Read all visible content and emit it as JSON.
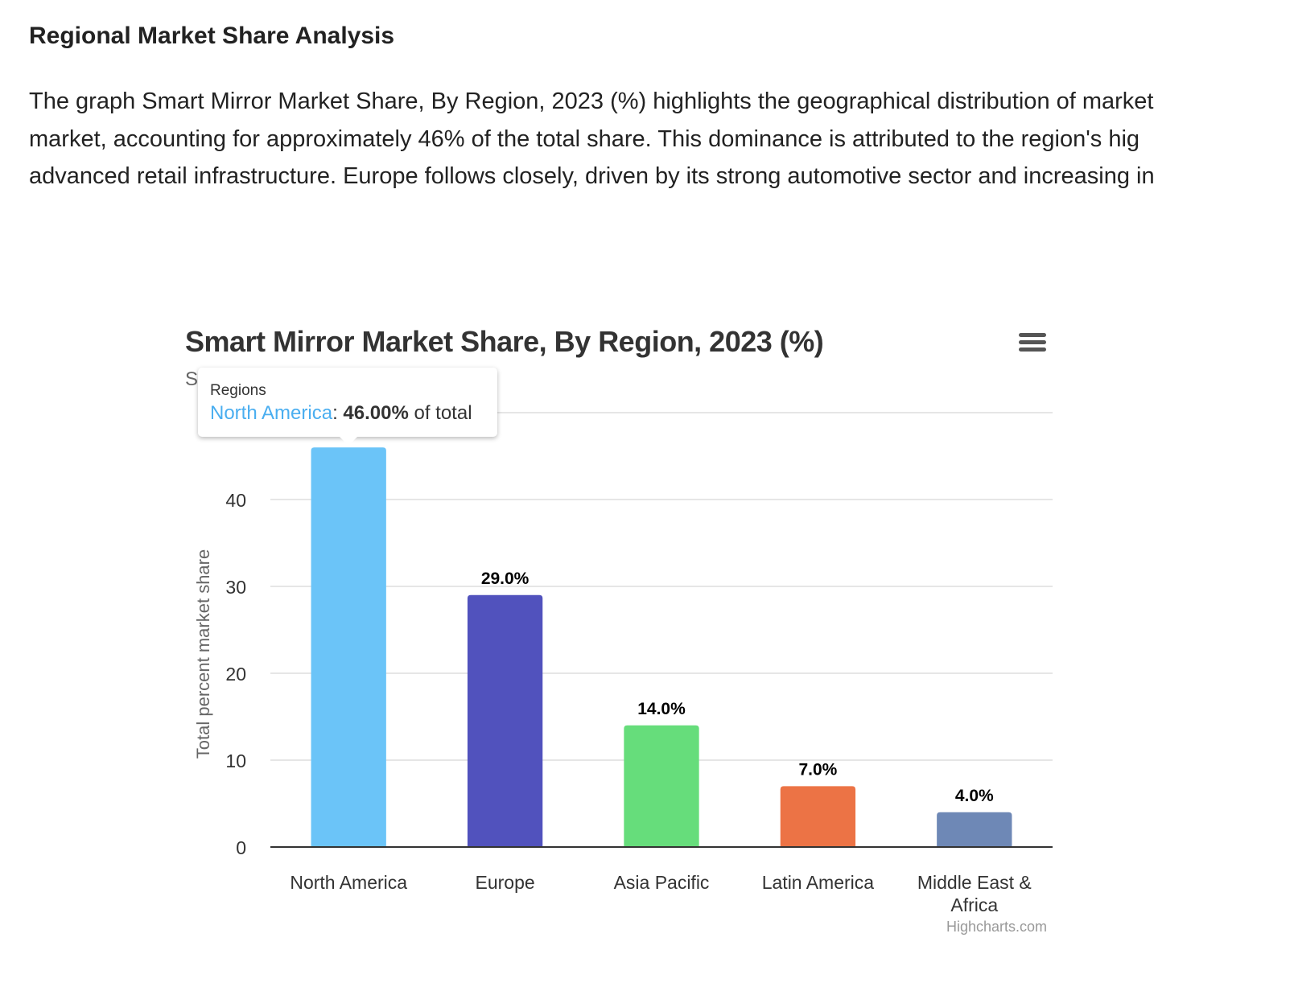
{
  "article": {
    "heading": "Regional Market Share Analysis",
    "lines": [
      "The graph Smart Mirror Market Share, By Region, 2023 (%) highlights the geographical distribution of market",
      "market, accounting for approximately 46% of the total share. This dominance is attributed to the region's hig",
      "advanced retail infrastructure. Europe follows closely, driven by its strong automotive sector and increasing in"
    ]
  },
  "chart_data": {
    "type": "bar",
    "title": "Smart Mirror Market Share, By Region, 2023 (%)",
    "subtitle_visible": "S",
    "xlabel": "",
    "ylabel": "Total percent market share",
    "categories": [
      "North America",
      "Europe",
      "Asia Pacific",
      "Latin America",
      "Middle East & Africa"
    ],
    "values": [
      46.0,
      29.0,
      14.0,
      7.0,
      4.0
    ],
    "data_labels": [
      "",
      "29.0%",
      "14.0%",
      "7.0%",
      "4.0%"
    ],
    "colors": [
      "#6bc4f8",
      "#5152bd",
      "#66dd7b",
      "#ec7345",
      "#6e88b6"
    ],
    "ylim": [
      0,
      50
    ],
    "yticks": [
      0,
      10,
      20,
      30,
      40
    ],
    "grid": true,
    "legend": "none",
    "credit": "Highcharts.com",
    "menu_icon": "hamburger-menu-icon"
  },
  "tooltip": {
    "header": "Regions",
    "series": "North America",
    "separator": ": ",
    "value": "46.00%",
    "suffix": " of total"
  }
}
